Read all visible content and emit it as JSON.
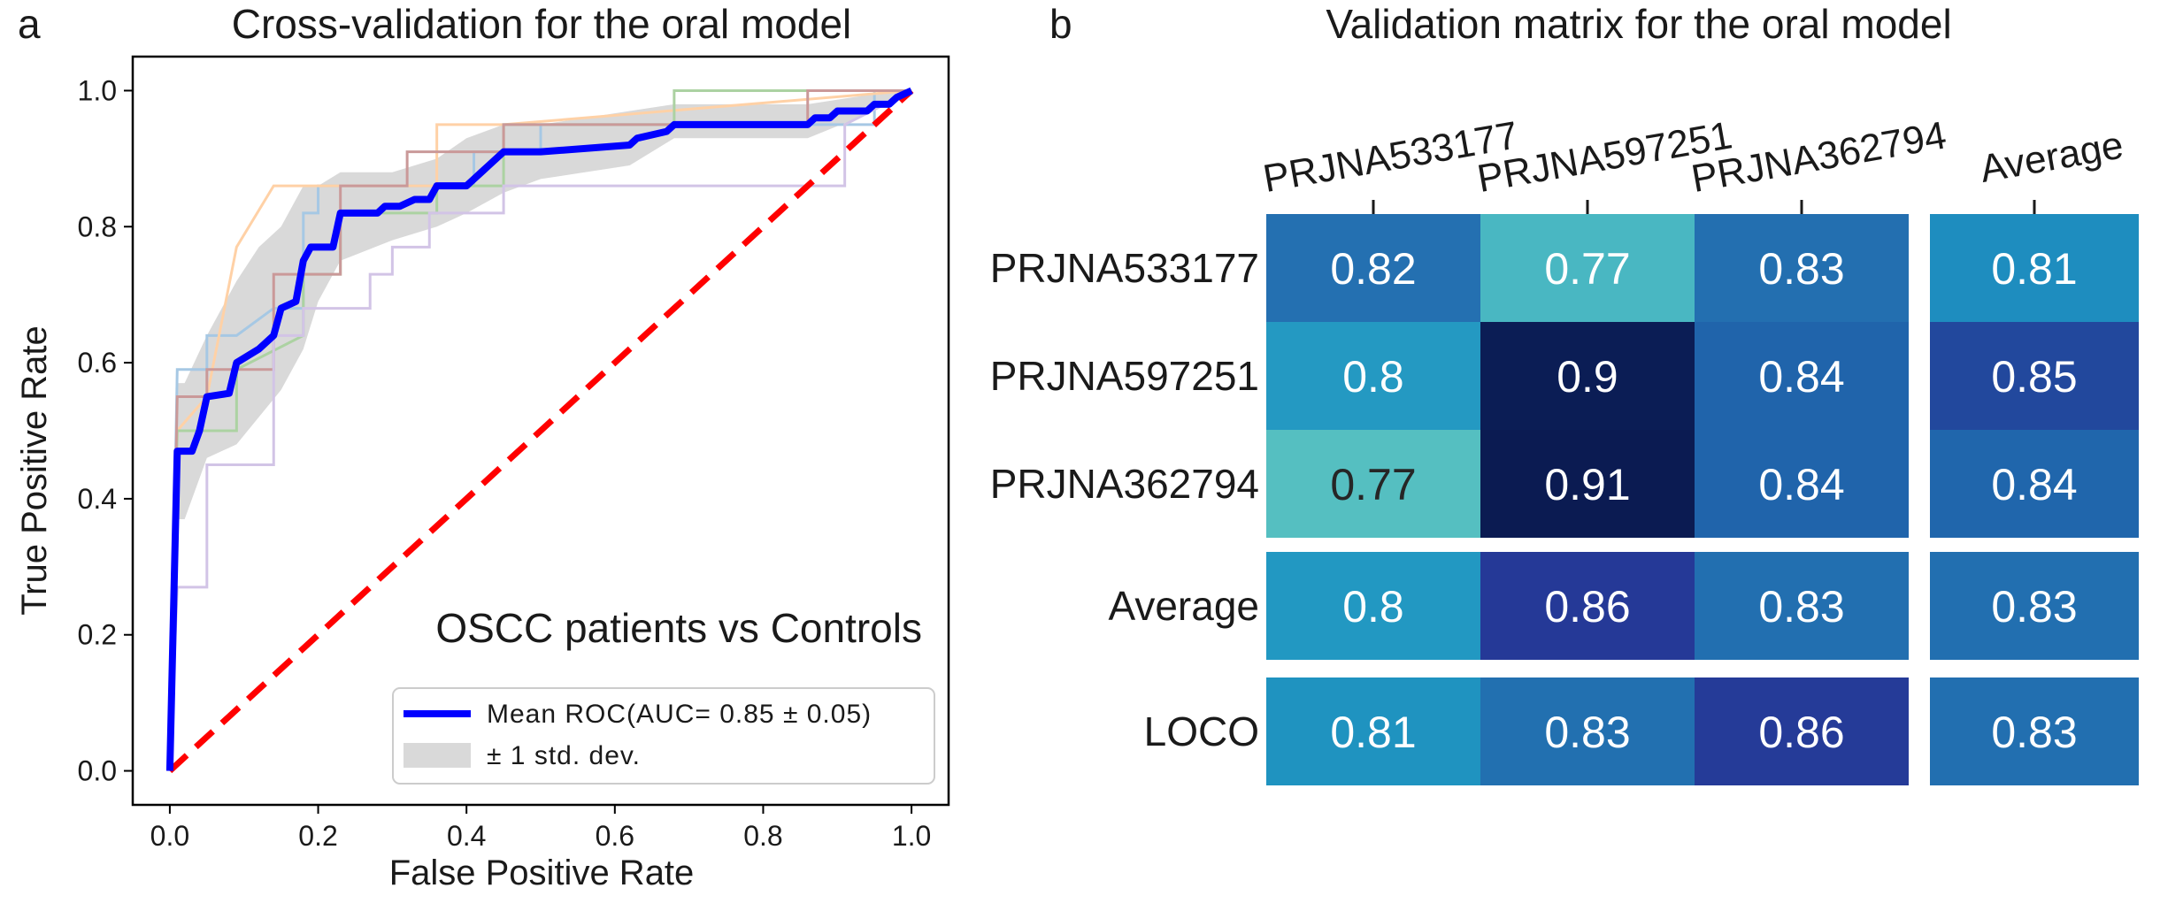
{
  "chart_data": [
    {
      "type": "line",
      "panel_label": "a",
      "title": "Cross-validation for the oral model",
      "xlabel": "False Positive Rate",
      "ylabel": "True Positive Rate",
      "xlim": [
        -0.05,
        1.05
      ],
      "ylim": [
        -0.05,
        1.05
      ],
      "xticks": [
        "0.0",
        "0.2",
        "0.4",
        "0.6",
        "0.8",
        "1.0"
      ],
      "yticks": [
        "0.0",
        "0.2",
        "0.4",
        "0.6",
        "0.8",
        "1.0"
      ],
      "annotation": "OSCC patients vs Controls",
      "legend_placement": "lower-right",
      "legend": [
        {
          "label": "Mean ROC(AUC= 0.85 ±  0.05)",
          "kind": "line",
          "color": "#0000ff"
        },
        {
          "label": "±  1 std. dev.",
          "kind": "patch",
          "color": "#d9d9d9"
        }
      ],
      "mean_roc": {
        "color": "#0000ff",
        "x": [
          0,
          0.01,
          0.01,
          0.03,
          0.04,
          0.05,
          0.08,
          0.09,
          0.12,
          0.14,
          0.15,
          0.17,
          0.18,
          0.19,
          0.22,
          0.23,
          0.28,
          0.29,
          0.31,
          0.33,
          0.35,
          0.36,
          0.4,
          0.41,
          0.42,
          0.43,
          0.45,
          0.5,
          0.62,
          0.63,
          0.67,
          0.68,
          0.86,
          0.87,
          0.89,
          0.9,
          0.94,
          0.95,
          0.97,
          0.98,
          1.0
        ],
        "y": [
          0,
          0.47,
          0.47,
          0.47,
          0.5,
          0.55,
          0.555,
          0.6,
          0.62,
          0.64,
          0.68,
          0.69,
          0.75,
          0.77,
          0.77,
          0.82,
          0.82,
          0.83,
          0.83,
          0.84,
          0.84,
          0.86,
          0.86,
          0.87,
          0.88,
          0.89,
          0.91,
          0.91,
          0.92,
          0.93,
          0.94,
          0.95,
          0.95,
          0.96,
          0.96,
          0.97,
          0.97,
          0.98,
          0.98,
          0.99,
          1.0
        ]
      },
      "std_band": {
        "color": "#d9d9d9",
        "x": [
          0,
          0.01,
          0.02,
          0.05,
          0.09,
          0.12,
          0.15,
          0.18,
          0.2,
          0.23,
          0.3,
          0.36,
          0.4,
          0.45,
          0.5,
          0.62,
          0.68,
          0.86,
          0.95,
          1.0
        ],
        "lower": [
          0,
          0.37,
          0.37,
          0.46,
          0.48,
          0.52,
          0.56,
          0.62,
          0.69,
          0.75,
          0.78,
          0.8,
          0.82,
          0.85,
          0.87,
          0.89,
          0.93,
          0.93,
          0.97,
          1.0
        ],
        "upper": [
          0,
          0.57,
          0.57,
          0.64,
          0.72,
          0.77,
          0.8,
          0.86,
          0.86,
          0.88,
          0.88,
          0.9,
          0.93,
          0.95,
          0.95,
          0.97,
          0.98,
          0.98,
          0.995,
          1.0
        ]
      },
      "folds": [
        {
          "color": "#a6c8e4",
          "x": [
            0,
            0.01,
            0.01,
            0.05,
            0.05,
            0.09,
            0.09,
            0.14,
            0.14,
            0.18,
            0.18,
            0.2,
            0.2,
            0.41,
            0.41,
            0.5,
            0.5,
            0.68,
            0.68,
            0.95,
            0.95,
            1.0
          ],
          "y": [
            0,
            0.59,
            0.59,
            0.59,
            0.64,
            0.64,
            0.64,
            0.68,
            0.68,
            0.68,
            0.82,
            0.82,
            0.86,
            0.86,
            0.91,
            0.91,
            0.95,
            0.95,
            0.95,
            0.95,
            1.0,
            1.0
          ]
        },
        {
          "color": "#ffd1a6",
          "x": [
            0,
            0.01,
            0.01,
            0.05,
            0.05,
            0.09,
            0.09,
            0.14,
            0.14,
            0.18,
            0.18,
            0.23,
            0.23,
            0.36,
            0.36,
            0.45,
            0.45,
            1.0
          ],
          "y": [
            0,
            0.5,
            0.5,
            0.55,
            0.55,
            0.77,
            0.77,
            0.86,
            0.86,
            0.86,
            0.86,
            0.86,
            0.86,
            0.86,
            0.95,
            0.95,
            0.95,
            1.0
          ]
        },
        {
          "color": "#acd2a2",
          "x": [
            0,
            0.01,
            0.01,
            0.09,
            0.09,
            0.18,
            0.18,
            0.23,
            0.23,
            0.36,
            0.36,
            0.45,
            0.45,
            0.68,
            0.68,
            1.0
          ],
          "y": [
            0,
            0.5,
            0.5,
            0.5,
            0.59,
            0.64,
            0.73,
            0.73,
            0.82,
            0.82,
            0.86,
            0.86,
            0.95,
            0.95,
            1.0,
            1.0
          ]
        },
        {
          "color": "#ca9999",
          "x": [
            0,
            0.01,
            0.01,
            0.05,
            0.05,
            0.14,
            0.14,
            0.23,
            0.23,
            0.32,
            0.32,
            0.45,
            0.45,
            0.86,
            0.86,
            1.0
          ],
          "y": [
            0,
            0.55,
            0.55,
            0.55,
            0.59,
            0.59,
            0.73,
            0.73,
            0.86,
            0.86,
            0.91,
            0.91,
            0.95,
            0.95,
            1.0,
            1.0
          ]
        },
        {
          "color": "#d2c4e6",
          "x": [
            0,
            0.01,
            0.01,
            0.05,
            0.05,
            0.14,
            0.14,
            0.18,
            0.18,
            0.27,
            0.27,
            0.3,
            0.3,
            0.35,
            0.35,
            0.45,
            0.45,
            0.62,
            0.62,
            0.91,
            0.91,
            1.0
          ],
          "y": [
            0,
            0.27,
            0.27,
            0.27,
            0.45,
            0.45,
            0.64,
            0.64,
            0.68,
            0.68,
            0.73,
            0.73,
            0.77,
            0.77,
            0.82,
            0.82,
            0.86,
            0.86,
            0.86,
            0.86,
            0.95,
            1.0
          ]
        }
      ],
      "chance_line": {
        "color": "#ff0000",
        "x": [
          0,
          1
        ],
        "y": [
          0,
          1
        ]
      }
    },
    {
      "type": "heatmap",
      "panel_label": "b",
      "title": "Validation matrix for the oral model",
      "columns": [
        "PRJNA533177",
        "PRJNA597251",
        "PRJNA362794",
        "Average"
      ],
      "rows": [
        "PRJNA533177",
        "PRJNA597251",
        "PRJNA362794",
        "Average",
        "LOCO"
      ],
      "values": [
        [
          "0.82",
          "0.77",
          "0.83",
          "0.81"
        ],
        [
          "0.8",
          "0.9",
          "0.84",
          "0.85"
        ],
        [
          "0.77",
          "0.91",
          "0.84",
          "0.84"
        ],
        [
          "0.8",
          "0.86",
          "0.83",
          "0.83"
        ],
        [
          "0.81",
          "0.83",
          "0.86",
          "0.83"
        ]
      ],
      "colormap": "YlGnBu",
      "colors": [
        [
          "#2470b1",
          "#49b7c2",
          "#236fb0",
          "#1e8dbf"
        ],
        [
          "#2499c2",
          "#0b1d55",
          "#2064ab",
          "#22489d"
        ],
        [
          "#55bfc1",
          "#0b1b52",
          "#2064ab",
          "#2066ac"
        ],
        [
          "#2298c2",
          "#253997",
          "#226fb0",
          "#226fb0"
        ],
        [
          "#1f93c0",
          "#2270b0",
          "#253b98",
          "#226fb0"
        ]
      ],
      "text_colors": [
        [
          "#ffffff",
          "#ffffff",
          "#ffffff",
          "#ffffff"
        ],
        [
          "#ffffff",
          "#ffffff",
          "#ffffff",
          "#ffffff"
        ],
        [
          "#262626",
          "#ffffff",
          "#ffffff",
          "#ffffff"
        ],
        [
          "#ffffff",
          "#ffffff",
          "#ffffff",
          "#ffffff"
        ],
        [
          "#ffffff",
          "#ffffff",
          "#ffffff",
          "#ffffff"
        ]
      ]
    }
  ]
}
